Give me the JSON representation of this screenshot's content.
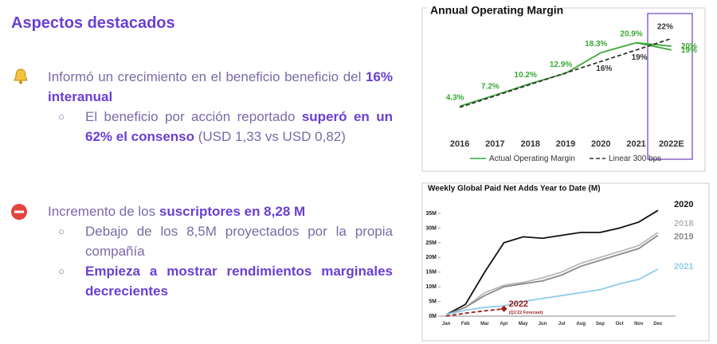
{
  "header": {
    "title": "Aspectos destacados"
  },
  "bullets": [
    {
      "runs": [
        {
          "text": "Informó un crecimiento en el beneficio beneficio del ",
          "bold": false
        },
        {
          "text": "16% interanual",
          "bold": true
        }
      ],
      "subs": [
        {
          "runs": [
            {
              "text": "El beneficio por acción reportado ",
              "bold": false
            },
            {
              "text": "superó en un 62% el consenso",
              "bold": true
            },
            {
              "text": " (USD 1,33 vs USD 0,82)",
              "bold": false
            }
          ]
        }
      ]
    },
    {
      "runs": [
        {
          "text": "Incremento de los ",
          "bold": false
        },
        {
          "text": "suscriptores en 8,28 M",
          "bold": true
        }
      ],
      "subs": [
        {
          "runs": [
            {
              "text": "Debajo de los 8,5M proyectados por la propia compañía",
              "bold": false
            }
          ]
        },
        {
          "runs": [
            {
              "text": "Empieza a mostrar rendimientos marginales decrecientes",
              "bold": true
            }
          ]
        }
      ]
    }
  ],
  "chart_data": [
    {
      "type": "line",
      "title": "Annual Operating Margin",
      "categories": [
        "2016",
        "2017",
        "2018",
        "2019",
        "2020",
        "2021",
        "2022E"
      ],
      "ylim": [
        0,
        25
      ],
      "series": [
        {
          "name": "Actual Operating Margin",
          "color": "#3aa835",
          "dashed": false,
          "values": [
            4.3,
            7.2,
            10.2,
            12.9,
            18.3,
            20.9,
            20
          ],
          "value_labels": [
            "4.3%",
            "7.2%",
            "10.2%",
            "12.9%",
            "18.3%",
            "20.9%",
            "20%"
          ]
        },
        {
          "color": "#3aa835",
          "dashed": false,
          "values": [
            null,
            null,
            null,
            null,
            null,
            20.9,
            19
          ],
          "value_labels": [
            null,
            null,
            null,
            null,
            null,
            null,
            "19%"
          ]
        },
        {
          "name": "Linear 300 bps",
          "color": "#333333",
          "dashed": true,
          "values": [
            4,
            7,
            10,
            13,
            16,
            19,
            22
          ],
          "value_labels": [
            null,
            null,
            null,
            null,
            "16%",
            "19%",
            "22%"
          ]
        }
      ]
    },
    {
      "type": "line",
      "title": "Weekly Global Paid Net Adds Year to Date (M)",
      "categories": [
        "Jan",
        "Feb",
        "Mar",
        "Apr",
        "May",
        "Jun",
        "Jul",
        "Aug",
        "Sep",
        "Oct",
        "Nov",
        "Dec"
      ],
      "ylim": [
        0,
        37
      ],
      "yticks": [
        {
          "value": 0,
          "label": "0M"
        },
        {
          "value": 5,
          "label": "5M"
        },
        {
          "value": 10,
          "label": "10M"
        },
        {
          "value": 15,
          "label": "15M"
        },
        {
          "value": 20,
          "label": "20M"
        },
        {
          "value": 25,
          "label": "25M"
        },
        {
          "value": 30,
          "label": "30M"
        },
        {
          "value": 35,
          "label": "35M"
        }
      ],
      "series": [
        {
          "name": "2020",
          "color": "#111111",
          "dashed": false,
          "values": [
            0.5,
            4,
            15,
            25,
            27,
            26.5,
            27.5,
            28.5,
            28.5,
            30,
            32,
            36
          ]
        },
        {
          "name": "2018",
          "color": "#b8b8b8",
          "dashed": false,
          "values": [
            0.5,
            3,
            8,
            10.5,
            11.5,
            13,
            15,
            18,
            20,
            22,
            24,
            28.5
          ]
        },
        {
          "name": "2019",
          "color": "#8a8a8a",
          "dashed": false,
          "values": [
            0.5,
            3,
            7,
            10,
            11,
            12,
            14,
            17,
            19,
            21,
            23,
            27.5
          ]
        },
        {
          "name": "2021",
          "color": "#8fcbee",
          "dashed": false,
          "values": [
            0.5,
            2,
            3,
            3.5,
            5,
            6,
            7,
            8,
            9,
            11,
            12.5,
            16
          ]
        },
        {
          "name": "2022",
          "color": "#9b1c1c",
          "dashed": true,
          "values": [
            0,
            1,
            1.8,
            2.5,
            null,
            null,
            null,
            null,
            null,
            null,
            null,
            null
          ]
        }
      ],
      "annotation": "(Q1'22 Forecast)"
    }
  ]
}
